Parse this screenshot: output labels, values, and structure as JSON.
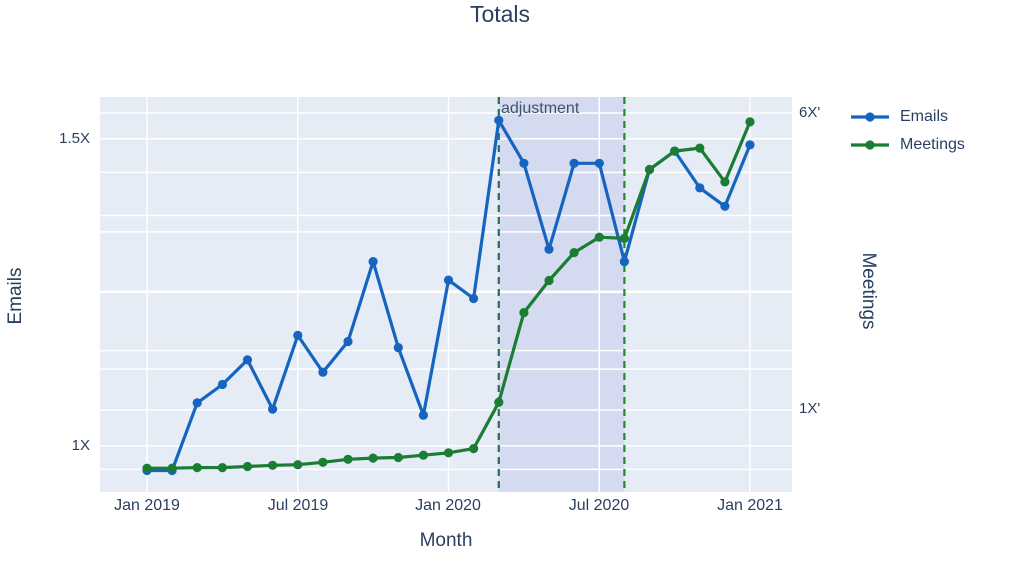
{
  "title": "Totals",
  "colors": {
    "text": "#2a3f5f",
    "plot_bg": "#e5ecf6",
    "grid": "#ffffff",
    "band_fill": "rgba(99,105,200,0.13)",
    "annotation": "#42526e",
    "vline_left": "#2c6a58",
    "vline_right": "#1f8b2c",
    "emails": "#1565c0",
    "meetings": "#1a7d33"
  },
  "legend": {
    "items": [
      {
        "label": "Emails",
        "color": "#1565c0"
      },
      {
        "label": "Meetings",
        "color": "#1a7d33"
      }
    ]
  },
  "chart_data": {
    "type": "line",
    "title": "Totals",
    "xlabel": "Month",
    "x": [
      "2019-01",
      "2019-02",
      "2019-03",
      "2019-04",
      "2019-05",
      "2019-06",
      "2019-07",
      "2019-08",
      "2019-09",
      "2019-10",
      "2019-11",
      "2019-12",
      "2020-01",
      "2020-02",
      "2020-03",
      "2020-04",
      "2020-05",
      "2020-06",
      "2020-07",
      "2020-08",
      "2020-09",
      "2020-10",
      "2020-11",
      "2020-12",
      "2021-01"
    ],
    "x_tick_labels": [
      "Jan 2019",
      "Jul 2019",
      "Jan 2020",
      "Jul 2020",
      "Jan 2021"
    ],
    "x_tick_indices": [
      0,
      6,
      12,
      18,
      24
    ],
    "x_range_indices": [
      -1.87,
      25.67
    ],
    "left_axis": {
      "title": "Emails",
      "tick_labels": [
        "1.5X",
        "1X"
      ],
      "tick_values": [
        1.5,
        1
      ],
      "gridline_values": [
        1,
        1.125,
        1.25,
        1.375,
        1.5
      ],
      "range": [
        0.925,
        1.568
      ]
    },
    "right_axis": {
      "title": "Meetings",
      "tick_labels": [
        "6X'",
        "1X'"
      ],
      "tick_values": [
        6,
        1
      ],
      "gridline_values": [
        0,
        1,
        2,
        3,
        4,
        5,
        6
      ],
      "range": [
        -0.38,
        6.27
      ]
    },
    "series": [
      {
        "name": "Emails",
        "axis": "left",
        "color": "#1565c0",
        "values": [
          0.96,
          0.96,
          1.07,
          1.1,
          1.14,
          1.06,
          1.18,
          1.12,
          1.17,
          1.3,
          1.16,
          1.05,
          1.27,
          1.24,
          1.53,
          1.46,
          1.32,
          1.46,
          1.46,
          1.3,
          1.45,
          1.48,
          1.42,
          1.39,
          1.49
        ]
      },
      {
        "name": "Meetings",
        "axis": "right",
        "color": "#1a7d33",
        "values": [
          0.02,
          0.02,
          0.03,
          0.03,
          0.05,
          0.07,
          0.08,
          0.12,
          0.17,
          0.19,
          0.2,
          0.24,
          0.28,
          0.35,
          1.13,
          2.64,
          3.18,
          3.65,
          3.91,
          3.89,
          5.05,
          5.36,
          5.41,
          4.84,
          5.85
        ]
      }
    ],
    "band": {
      "label": "adjustment",
      "from_index": 14,
      "to_index": 19
    },
    "vlines": [
      {
        "index": 14,
        "color_key": "vline_left",
        "style": "dashed"
      },
      {
        "index": 19,
        "color_key": "vline_right",
        "style": "dashed"
      }
    ],
    "legend_position": "top-right",
    "grid": true
  }
}
